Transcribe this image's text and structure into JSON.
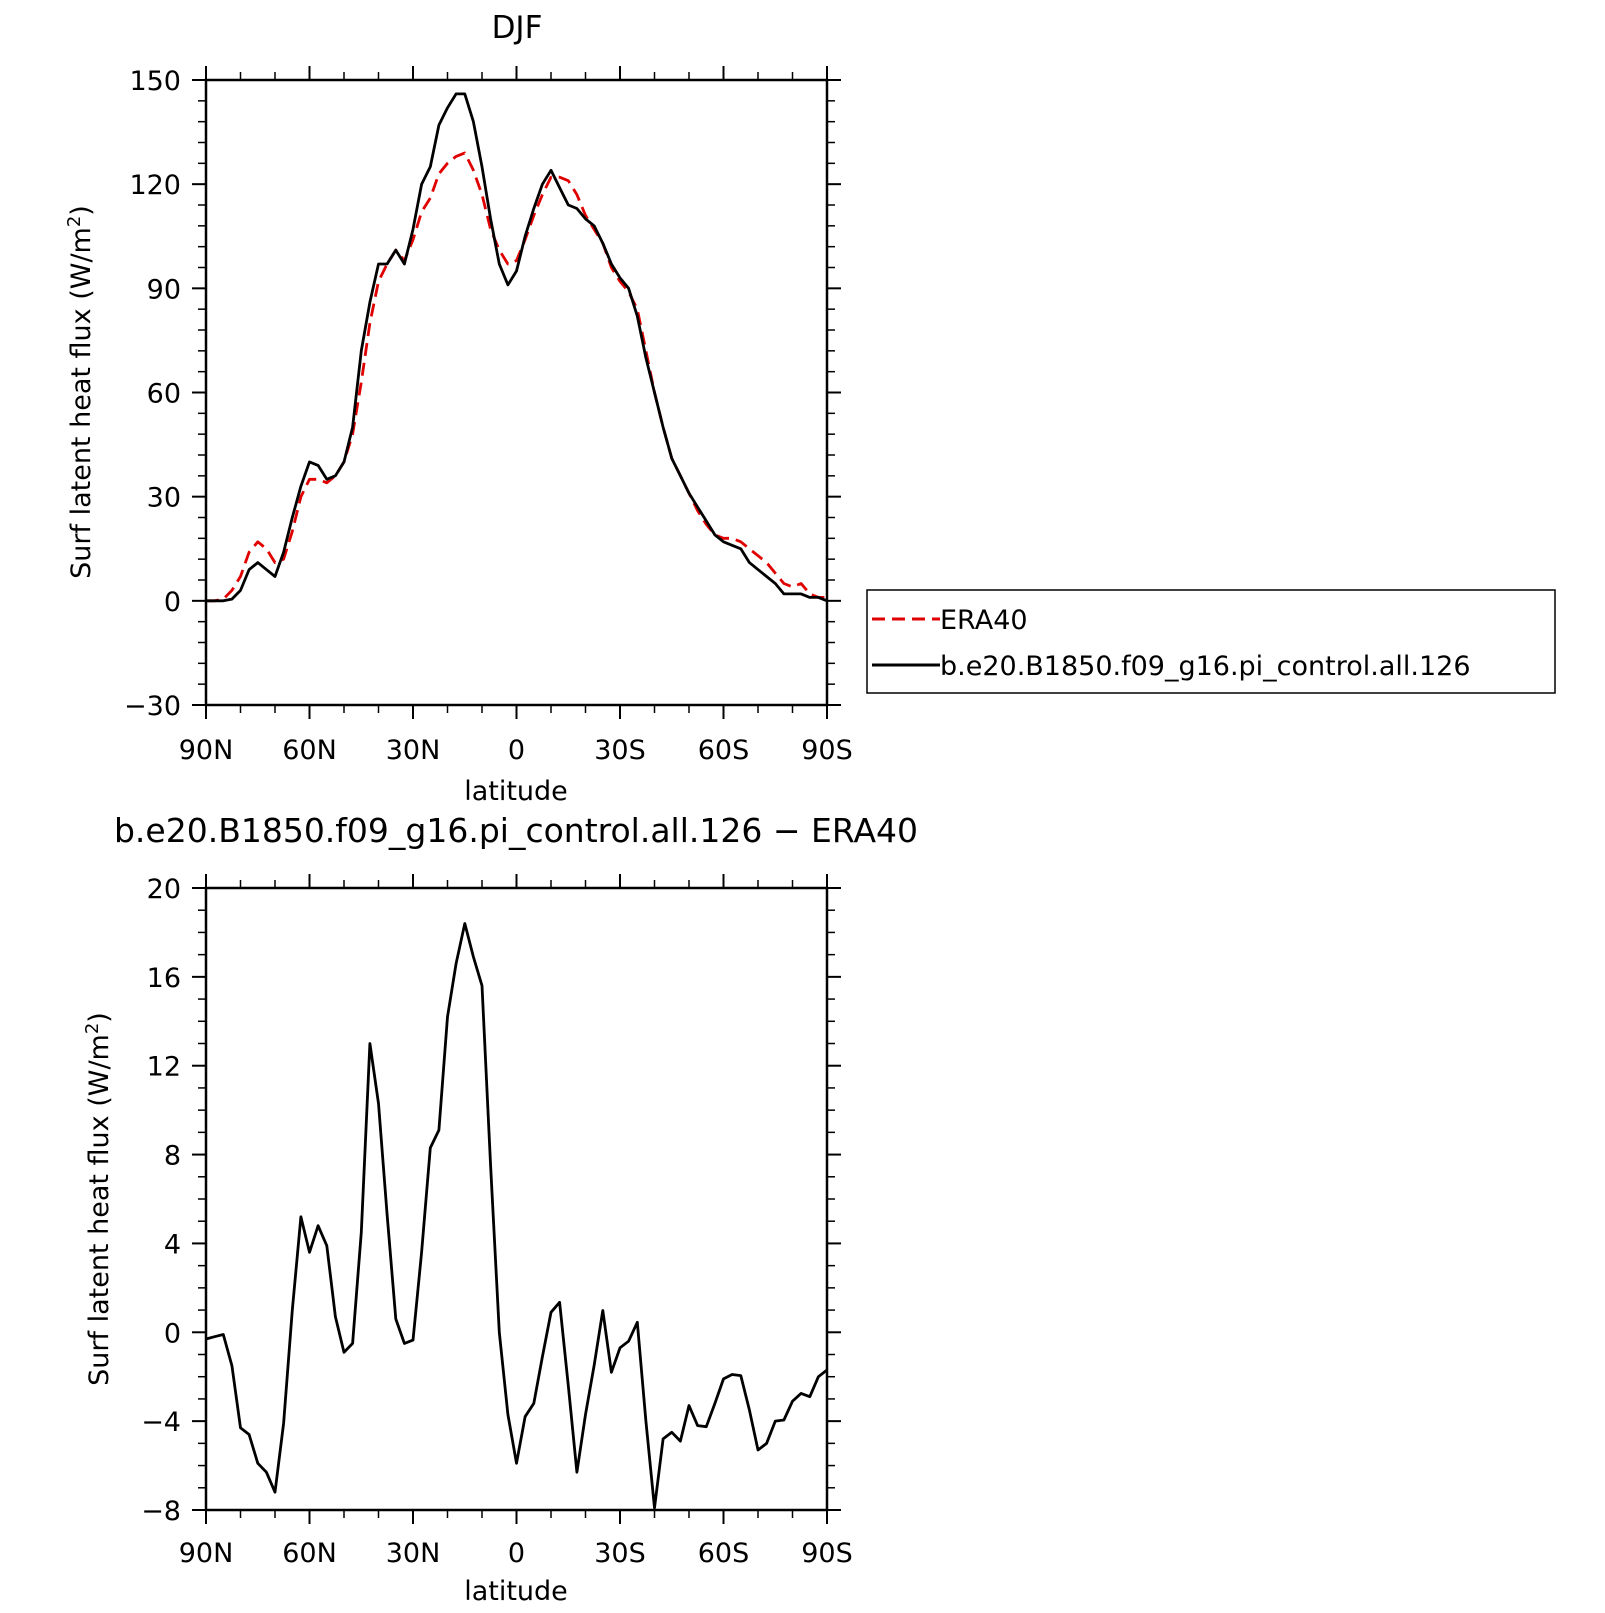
{
  "chart_data": [
    {
      "type": "line",
      "title": "DJF",
      "xlabel": "latitude",
      "ylabel": "Surf latent heat flux (W/m",
      "ylabel_sup": "2",
      "ylabel_close": ")",
      "x_ticks": [
        {
          "value": 90,
          "label": "90N"
        },
        {
          "value": 60,
          "label": "60N"
        },
        {
          "value": 30,
          "label": "30N"
        },
        {
          "value": 0,
          "label": "0"
        },
        {
          "value": -30,
          "label": "30S"
        },
        {
          "value": -60,
          "label": "60S"
        },
        {
          "value": -90,
          "label": "90S"
        }
      ],
      "xlim": [
        90,
        -90
      ],
      "ylim": [
        -30,
        150
      ],
      "y_ticks": [
        -30,
        0,
        30,
        60,
        90,
        120,
        150
      ],
      "y_tick_labels": [
        "−30",
        "0",
        "30",
        "60",
        "90",
        "120",
        "150"
      ],
      "legend": {
        "placement": "right",
        "entries": [
          "ERA40",
          "b.e20.B1850.f09_g16.pi_control.all.126"
        ]
      },
      "series": [
        {
          "name": "ERA40",
          "color": "#e00000",
          "style": "dashed",
          "x": [
            90,
            87.5,
            85,
            82.5,
            80,
            77.5,
            75,
            72.5,
            70,
            67.5,
            65,
            62.5,
            60,
            57.5,
            55,
            52.5,
            50,
            47.5,
            45,
            42.5,
            40,
            37.5,
            35,
            32.5,
            30,
            27.5,
            25,
            22.5,
            20,
            17.5,
            15,
            12.5,
            10,
            7.5,
            5,
            2.5,
            0,
            -2.5,
            -5,
            -7.5,
            -10,
            -12.5,
            -15,
            -17.5,
            -20,
            -22.5,
            -25,
            -27.5,
            -30,
            -32.5,
            -35,
            -37.5,
            -40,
            -42.5,
            -45,
            -47.5,
            -50,
            -52.5,
            -55,
            -57.5,
            -60,
            -62.5,
            -65,
            -67.5,
            -70,
            -72.5,
            -75,
            -77.5,
            -80,
            -82.5,
            -85,
            -87.5,
            -90
          ],
          "y": [
            0,
            0,
            0.5,
            3,
            7,
            14,
            17,
            15,
            11,
            12,
            20,
            30,
            35,
            35,
            34,
            36,
            40,
            48,
            63,
            80,
            92,
            97,
            101,
            98,
            104,
            112,
            116,
            123,
            126,
            128,
            129,
            124,
            117,
            107,
            101,
            97,
            98,
            104,
            111,
            117,
            122,
            122,
            121,
            117,
            111,
            107,
            103,
            96,
            92,
            89,
            84,
            72,
            60,
            50,
            41,
            36,
            31,
            26,
            22,
            19,
            18,
            18,
            17,
            15,
            13,
            11,
            8,
            5,
            4,
            5,
            2,
            1,
            1
          ]
        },
        {
          "name": "b.e20.B1850.f09_g16.pi_control.all.126",
          "color": "#000000",
          "style": "solid",
          "x": [
            90,
            87.5,
            85,
            82.5,
            80,
            77.5,
            75,
            72.5,
            70,
            67.5,
            65,
            62.5,
            60,
            57.5,
            55,
            52.5,
            50,
            47.5,
            45,
            42.5,
            40,
            37.5,
            35,
            32.5,
            30,
            27.5,
            25,
            22.5,
            20,
            17.5,
            15,
            12.5,
            10,
            7.5,
            5,
            2.5,
            0,
            -2.5,
            -5,
            -7.5,
            -10,
            -12.5,
            -15,
            -17.5,
            -20,
            -22.5,
            -25,
            -27.5,
            -30,
            -32.5,
            -35,
            -37.5,
            -40,
            -42.5,
            -45,
            -47.5,
            -50,
            -52.5,
            -55,
            -57.5,
            -60,
            -62.5,
            -65,
            -67.5,
            -70,
            -72.5,
            -75,
            -77.5,
            -80,
            -82.5,
            -85,
            -87.5,
            -90
          ],
          "y": [
            0,
            0,
            0,
            0.5,
            3,
            9,
            11,
            9,
            7,
            14,
            24,
            33,
            40,
            39,
            35,
            36,
            40,
            50,
            72,
            86,
            97,
            97,
            101,
            97,
            107,
            120,
            125,
            137,
            142,
            146,
            146,
            138,
            125,
            110,
            97,
            91,
            95,
            105,
            113,
            120,
            124,
            119,
            114,
            113,
            110,
            108,
            103,
            97,
            93,
            90,
            82,
            70,
            60,
            50,
            41,
            36,
            31,
            27,
            23,
            19,
            17,
            16,
            15,
            11,
            9,
            7,
            5,
            2,
            2,
            2,
            1,
            1,
            0
          ]
        }
      ]
    },
    {
      "type": "line",
      "title": "b.e20.B1850.f09_g16.pi_control.all.126 − ERA40",
      "xlabel": "latitude",
      "ylabel": "Surf latent heat flux (W/m",
      "ylabel_sup": "2",
      "ylabel_close": ")",
      "x_ticks": [
        {
          "value": 90,
          "label": "90N"
        },
        {
          "value": 60,
          "label": "60N"
        },
        {
          "value": 30,
          "label": "30N"
        },
        {
          "value": 0,
          "label": "0"
        },
        {
          "value": -30,
          "label": "30S"
        },
        {
          "value": -60,
          "label": "60S"
        },
        {
          "value": -90,
          "label": "90S"
        }
      ],
      "xlim": [
        90,
        -90
      ],
      "ylim": [
        -8,
        20
      ],
      "y_ticks": [
        -8,
        -4,
        0,
        4,
        8,
        12,
        16,
        20
      ],
      "y_tick_labels": [
        "−8",
        "−4",
        "0",
        "4",
        "8",
        "12",
        "16",
        "20"
      ],
      "series": [
        {
          "color": "#000000",
          "style": "solid",
          "x": [
            90,
            87.5,
            85,
            82.5,
            80,
            77.5,
            75,
            72.5,
            70,
            67.5,
            65,
            62.5,
            60,
            57.5,
            55,
            52.5,
            50,
            47.5,
            45,
            42.5,
            40,
            37.5,
            35,
            32.5,
            30,
            27.5,
            25,
            22.5,
            20,
            17.5,
            15,
            12.5,
            10,
            7.5,
            5,
            2.5,
            0,
            -2.5,
            -5,
            -7.5,
            -10,
            -12.5,
            -15,
            -17.5,
            -20,
            -22.5,
            -25,
            -27.5,
            -30,
            -32.5,
            -35,
            -37.5,
            -40,
            -42.5,
            -45,
            -47.5,
            -50,
            -52.5,
            -55,
            -57.5,
            -60,
            -62.5,
            -65,
            -67.5,
            -70,
            -72.5,
            -75,
            -77.5,
            -80,
            -82.5,
            -85,
            -87.5,
            -90
          ],
          "y": [
            -0.3,
            -0.2,
            -0.1,
            -1.5,
            -4.3,
            -4.6,
            -5.9,
            -6.3,
            -7.2,
            -4.1,
            1.0,
            5.2,
            3.6,
            4.8,
            3.9,
            0.7,
            -0.9,
            -0.5,
            4.5,
            13.0,
            10.3,
            5.3,
            0.6,
            -0.5,
            -0.35,
            3.6,
            8.3,
            9.1,
            14.2,
            16.6,
            18.4,
            16.9,
            15.6,
            7.5,
            0.0,
            -3.7,
            -5.9,
            -3.8,
            -3.2,
            -1.1,
            0.9,
            1.35,
            -2.4,
            -6.3,
            -3.7,
            -1.5,
            0.98,
            -1.8,
            -0.7,
            -0.4,
            0.45,
            -4.0,
            -7.9,
            -4.8,
            -4.5,
            -4.9,
            -3.3,
            -4.2,
            -4.25,
            -3.2,
            -2.1,
            -1.9,
            -1.95,
            -3.5,
            -5.3,
            -5.0,
            -4.0,
            -3.95,
            -3.1,
            -2.75,
            -2.9,
            -2.0,
            -1.7
          ]
        }
      ]
    }
  ]
}
